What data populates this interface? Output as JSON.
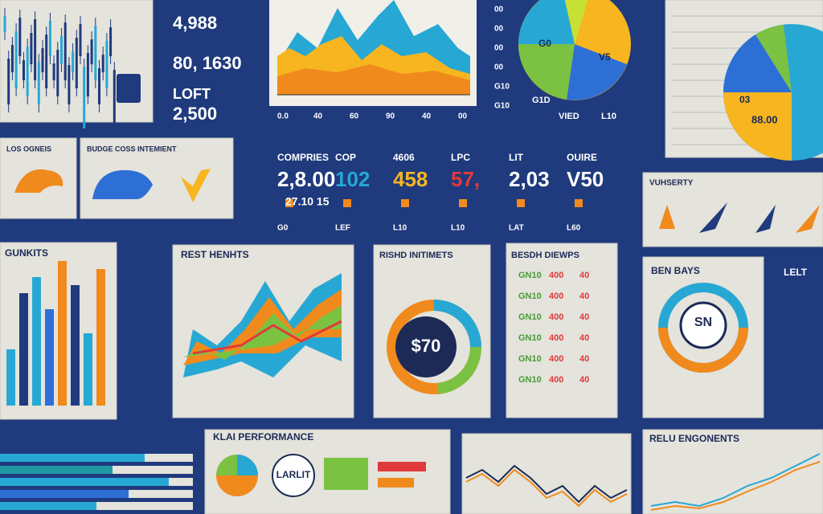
{
  "top_stats": [
    "4,988",
    "80, 1630",
    "LOFT",
    "2,500"
  ],
  "area_panel": {
    "axis_labels": [
      "0.0",
      "40",
      "60",
      "90",
      "40",
      "00"
    ]
  },
  "side_labels": [
    "00",
    "00",
    "00",
    "00",
    "G10",
    "G10"
  ],
  "pie_panel": {
    "labels": [
      "G0",
      "V5",
      "G1D",
      "VIED",
      "L10"
    ]
  },
  "right_pie_panel": {
    "labels": [
      "03",
      "88.00"
    ]
  },
  "mid_panels": {
    "left_title": "LOS OGNEIS",
    "animal_title": "BUDGE COSS INTEMIENT"
  },
  "kpis": {
    "labels": [
      "COMPRIES",
      "COP",
      "4606",
      "LPC",
      "LIT",
      "OUIRE"
    ],
    "values": [
      "2,8.00",
      "102",
      "458",
      "57,",
      "2,03",
      "V50"
    ],
    "sub": "27.10 15",
    "footer": [
      "G0",
      "LEF",
      "L10",
      "L10",
      "LAT",
      "L60"
    ]
  },
  "icons_panel": {
    "title": "VUHSERTY"
  },
  "bar_panel": {
    "title": "GUNKITS"
  },
  "stream_panel": {
    "title": "REST HENHTS"
  },
  "donut_panel": {
    "title": "RISHD INITIMETS",
    "center": "$70"
  },
  "table_panel": {
    "title": "BESDH DIEWPS",
    "rows": [
      [
        "GN10",
        "400",
        "40"
      ],
      [
        "GN10",
        "400",
        "40"
      ],
      [
        "GN10",
        "400",
        "40"
      ],
      [
        "GN10",
        "400",
        "40"
      ],
      [
        "GN10",
        "400",
        "40"
      ],
      [
        "GN10",
        "400",
        "40"
      ]
    ]
  },
  "gauge_panel": {
    "title": "BEN BAYS",
    "center": "SN"
  },
  "right_column": {
    "title": "LELT"
  },
  "performance_panel": {
    "title": "KLAI PERFORMANCE",
    "badge": "LARLIT"
  },
  "components_panel": {
    "title": "RELU ENGONENTS"
  }
}
